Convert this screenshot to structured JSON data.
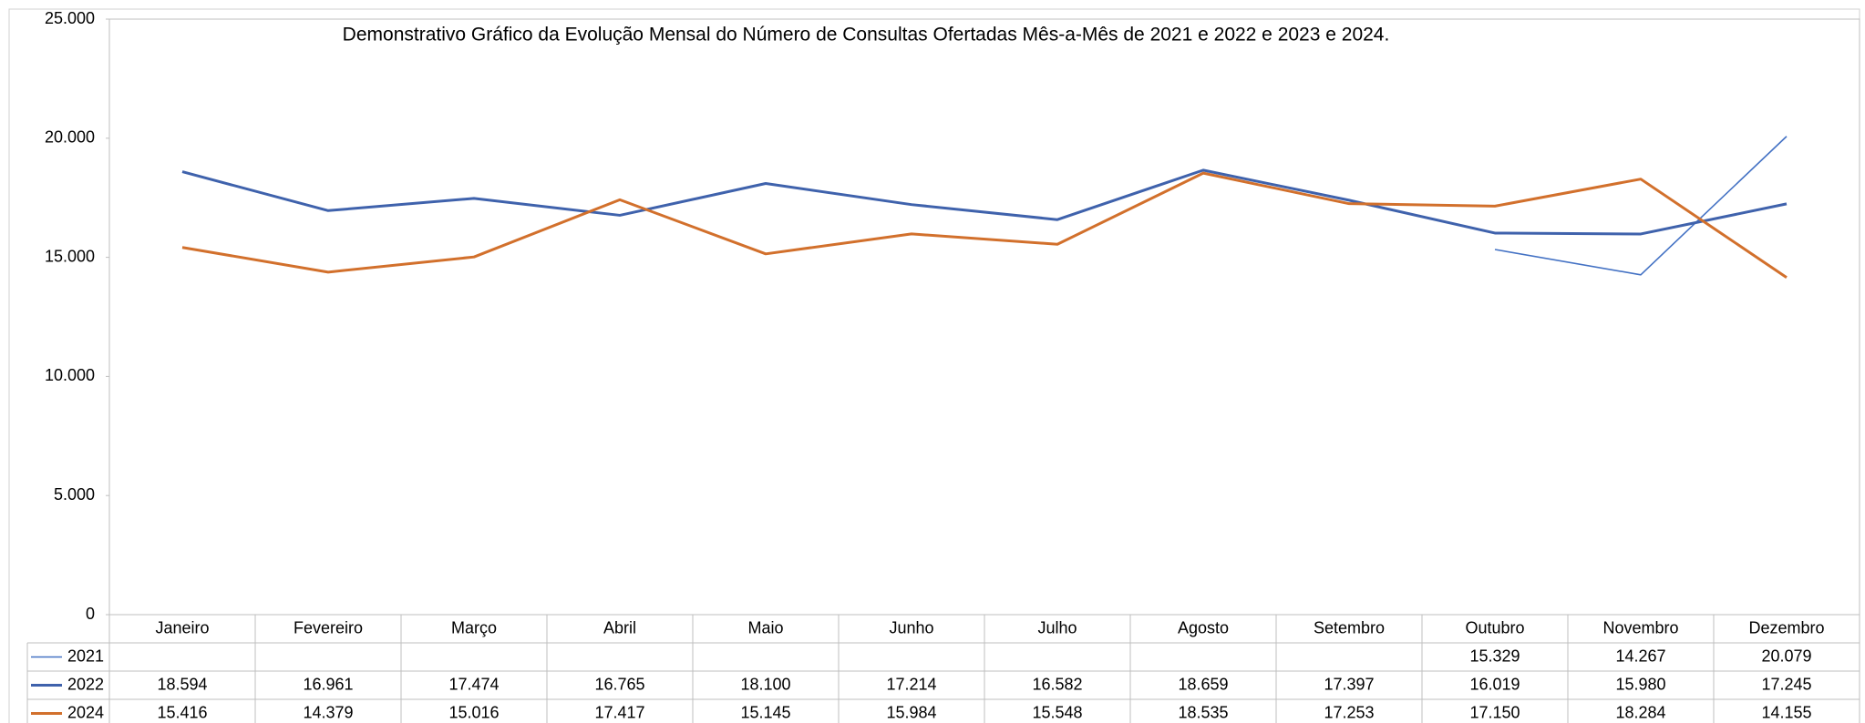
{
  "chart_data": {
    "type": "line",
    "title": "Demonstrativo Gráfico da Evolução Mensal do Número de Consultas Ofertadas Mês-a-Mês de 2021 e 2022 e 2023 e 2024.",
    "categories": [
      "Janeiro",
      "Fevereiro",
      "Março",
      "Abril",
      "Maio",
      "Junho",
      "Julho",
      "Agosto",
      "Setembro",
      "Outubro",
      "Novembro",
      "Dezembro"
    ],
    "series": [
      {
        "name": "2021",
        "color": "#4472c4",
        "values": [
          null,
          null,
          null,
          null,
          null,
          null,
          null,
          null,
          null,
          15329,
          14267,
          20079
        ],
        "value_labels": [
          null,
          null,
          null,
          null,
          null,
          null,
          null,
          null,
          null,
          "15.329",
          "14.267",
          "20.079"
        ]
      },
      {
        "name": "2022",
        "color": "#3f62ac",
        "values": [
          18594,
          16961,
          17474,
          16765,
          18100,
          17214,
          16582,
          18659,
          17397,
          16019,
          15980,
          17245
        ],
        "value_labels": [
          "18.594",
          "16.961",
          "17.474",
          "16.765",
          "18.100",
          "17.214",
          "16.582",
          "18.659",
          "17.397",
          "16.019",
          "15.980",
          "17.245"
        ]
      },
      {
        "name": "2024",
        "color": "#d2702c",
        "values": [
          15416,
          14379,
          15016,
          17417,
          15145,
          15984,
          15548,
          18535,
          17253,
          17150,
          18284,
          14155
        ],
        "value_labels": [
          "15.416",
          "14.379",
          "15.016",
          "17.417",
          "15.145",
          "15.984",
          "15.548",
          "18.535",
          "17.253",
          "17.150",
          "18.284",
          "14.155"
        ]
      }
    ],
    "ylim": [
      0,
      25000
    ],
    "yticks": [
      0,
      {
        "value": 5000,
        "label": "5.000"
      },
      {
        "value": 10000,
        "label": "10.000"
      },
      {
        "value": 15000,
        "label": "15.000"
      },
      {
        "value": 20000,
        "label": "20.000"
      },
      {
        "value": 25000,
        "label": "25.000"
      }
    ]
  }
}
